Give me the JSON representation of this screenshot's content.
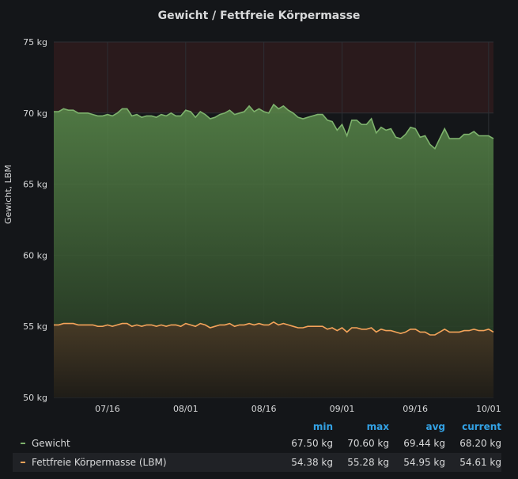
{
  "panel": {
    "title": "Gewicht / Fettfreie Körpermasse"
  },
  "chart_data": {
    "type": "area",
    "title": "Gewicht / Fettfreie Körpermasse",
    "ylabel": "Gewicht, LBM",
    "xlabel": "",
    "ylim": [
      50,
      75
    ],
    "yticks": [
      "50 kg",
      "55 kg",
      "60 kg",
      "65 kg",
      "70 kg",
      "75 kg"
    ],
    "xticks": [
      "07/16",
      "08/01",
      "08/16",
      "09/01",
      "09/16",
      "10/01"
    ],
    "threshold": {
      "above": 70,
      "color": "#2a1a1c"
    },
    "grid": true,
    "legend_placement": "bottom",
    "series": [
      {
        "name": "Gewicht",
        "color": "#7eb26d",
        "values": [
          70.1,
          70.1,
          70.3,
          70.2,
          70.2,
          70.0,
          70.0,
          70.0,
          69.9,
          69.8,
          69.8,
          69.9,
          69.8,
          70.0,
          70.3,
          70.3,
          69.8,
          69.9,
          69.7,
          69.8,
          69.8,
          69.7,
          69.9,
          69.8,
          70.0,
          69.8,
          69.8,
          70.2,
          70.1,
          69.7,
          70.1,
          69.9,
          69.6,
          69.7,
          69.9,
          70.0,
          70.2,
          69.9,
          70.0,
          70.1,
          70.5,
          70.1,
          70.3,
          70.1,
          70.0,
          70.6,
          70.3,
          70.5,
          70.2,
          70.0,
          69.7,
          69.6,
          69.7,
          69.8,
          69.9,
          69.9,
          69.5,
          69.4,
          68.8,
          69.2,
          68.4,
          69.5,
          69.5,
          69.2,
          69.2,
          69.6,
          68.6,
          69.0,
          68.8,
          68.9,
          68.3,
          68.2,
          68.5,
          69.0,
          68.9,
          68.3,
          68.4,
          67.8,
          67.5,
          68.2,
          68.9,
          68.2,
          68.2,
          68.2,
          68.5,
          68.5,
          68.7,
          68.4,
          68.4,
          68.4,
          68.2
        ]
      },
      {
        "name": "Fettfreie Körpermasse (LBM)",
        "color": "#f4a35a",
        "values": [
          55.1,
          55.1,
          55.2,
          55.2,
          55.2,
          55.1,
          55.1,
          55.1,
          55.1,
          55.0,
          55.0,
          55.1,
          55.0,
          55.1,
          55.2,
          55.2,
          55.0,
          55.1,
          55.0,
          55.1,
          55.1,
          55.0,
          55.1,
          55.0,
          55.1,
          55.1,
          55.0,
          55.2,
          55.1,
          55.0,
          55.2,
          55.1,
          54.9,
          55.0,
          55.1,
          55.1,
          55.2,
          55.0,
          55.1,
          55.1,
          55.2,
          55.1,
          55.2,
          55.1,
          55.1,
          55.3,
          55.1,
          55.2,
          55.1,
          55.0,
          54.9,
          54.9,
          55.0,
          55.0,
          55.0,
          55.0,
          54.8,
          54.9,
          54.7,
          54.9,
          54.6,
          54.9,
          54.9,
          54.8,
          54.8,
          54.9,
          54.6,
          54.8,
          54.7,
          54.7,
          54.6,
          54.5,
          54.6,
          54.8,
          54.8,
          54.6,
          54.6,
          54.4,
          54.4,
          54.6,
          54.8,
          54.6,
          54.6,
          54.6,
          54.7,
          54.7,
          54.8,
          54.7,
          54.7,
          54.8,
          54.6
        ]
      }
    ]
  },
  "legend": {
    "headers": [
      "min",
      "max",
      "avg",
      "current"
    ],
    "rows": [
      {
        "name": "Gewicht",
        "min": "67.50 kg",
        "max": "70.60 kg",
        "avg": "69.44 kg",
        "current": "68.20 kg"
      },
      {
        "name": "Fettfreie Körpermasse (LBM)",
        "min": "54.38 kg",
        "max": "55.28 kg",
        "avg": "54.95 kg",
        "current": "54.61 kg"
      }
    ]
  }
}
